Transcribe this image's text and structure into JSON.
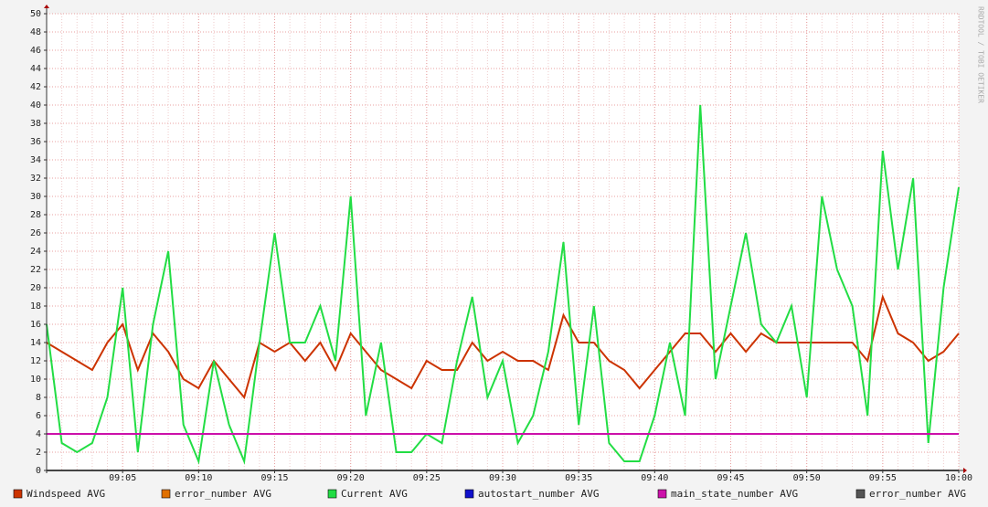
{
  "chart_data": {
    "type": "line",
    "watermark": "RRDTOOL / TOBI OETIKER",
    "x": [
      "09:00",
      "09:01",
      "09:02",
      "09:03",
      "09:04",
      "09:05",
      "09:06",
      "09:07",
      "09:08",
      "09:09",
      "09:10",
      "09:11",
      "09:12",
      "09:13",
      "09:14",
      "09:15",
      "09:16",
      "09:17",
      "09:18",
      "09:19",
      "09:20",
      "09:21",
      "09:22",
      "09:23",
      "09:24",
      "09:25",
      "09:26",
      "09:27",
      "09:28",
      "09:29",
      "09:30",
      "09:31",
      "09:32",
      "09:33",
      "09:34",
      "09:35",
      "09:36",
      "09:37",
      "09:38",
      "09:39",
      "09:40",
      "09:41",
      "09:42",
      "09:43",
      "09:44",
      "09:45",
      "09:46",
      "09:47",
      "09:48",
      "09:49",
      "09:50",
      "09:51",
      "09:52",
      "09:53",
      "09:54",
      "09:55",
      "09:56",
      "09:57",
      "09:58",
      "09:59",
      "10:00"
    ],
    "xticks": [
      "09:05",
      "09:10",
      "09:15",
      "09:20",
      "09:25",
      "09:30",
      "09:35",
      "09:40",
      "09:45",
      "09:50",
      "09:55",
      "10:00"
    ],
    "ylim": [
      0,
      50
    ],
    "yticks": [
      0,
      2,
      4,
      6,
      8,
      10,
      12,
      14,
      16,
      18,
      20,
      22,
      24,
      26,
      28,
      30,
      32,
      34,
      36,
      38,
      40,
      42,
      44,
      46,
      48,
      50
    ],
    "grid": true,
    "series": [
      {
        "name": "Windspeed AVG",
        "color": "#cc3300",
        "values": [
          14,
          13,
          12,
          11,
          14,
          16,
          11,
          15,
          13,
          10,
          9,
          12,
          10,
          8,
          14,
          13,
          14,
          12,
          14,
          11,
          15,
          13,
          11,
          10,
          9,
          12,
          11,
          11,
          14,
          12,
          13,
          12,
          12,
          11,
          17,
          14,
          14,
          12,
          11,
          9,
          11,
          13,
          15,
          15,
          13,
          15,
          13,
          15,
          14,
          14,
          14,
          14,
          14,
          14,
          12,
          19,
          15,
          14,
          12,
          13,
          15
        ]
      },
      {
        "name": "error_number AVG",
        "color": "#e07000",
        "values": [
          0,
          0,
          0,
          0,
          0,
          0,
          0,
          0,
          0,
          0,
          0,
          0,
          0,
          0,
          0,
          0,
          0,
          0,
          0,
          0,
          0,
          0,
          0,
          0,
          0,
          0,
          0,
          0,
          0,
          0,
          0,
          0,
          0,
          0,
          0,
          0,
          0,
          0,
          0,
          0,
          0,
          0,
          0,
          0,
          0,
          0,
          0,
          0,
          0,
          0,
          0,
          0,
          0,
          0,
          0,
          0,
          0,
          0,
          0,
          0,
          0
        ]
      },
      {
        "name": "Current AVG",
        "color": "#22dd44",
        "values": [
          16,
          3,
          2,
          3,
          8,
          20,
          2,
          16,
          24,
          5,
          1,
          12,
          5,
          1,
          14,
          26,
          14,
          14,
          18,
          12,
          30,
          6,
          14,
          2,
          2,
          4,
          3,
          12,
          19,
          8,
          12,
          3,
          6,
          13,
          25,
          5,
          18,
          3,
          1,
          1,
          6,
          14,
          6,
          40,
          10,
          18,
          26,
          16,
          14,
          18,
          8,
          30,
          22,
          18,
          6,
          35,
          22,
          32,
          3,
          20,
          31
        ]
      },
      {
        "name": "autostart_number AVG",
        "color": "#1111cc",
        "values": [
          0,
          0,
          0,
          0,
          0,
          0,
          0,
          0,
          0,
          0,
          0,
          0,
          0,
          0,
          0,
          0,
          0,
          0,
          0,
          0,
          0,
          0,
          0,
          0,
          0,
          0,
          0,
          0,
          0,
          0,
          0,
          0,
          0,
          0,
          0,
          0,
          0,
          0,
          0,
          0,
          0,
          0,
          0,
          0,
          0,
          0,
          0,
          0,
          0,
          0,
          0,
          0,
          0,
          0,
          0,
          0,
          0,
          0,
          0,
          0,
          0
        ]
      },
      {
        "name": "main_state_number AVG",
        "color": "#cc11aa",
        "values": [
          4,
          4,
          4,
          4,
          4,
          4,
          4,
          4,
          4,
          4,
          4,
          4,
          4,
          4,
          4,
          4,
          4,
          4,
          4,
          4,
          4,
          4,
          4,
          4,
          4,
          4,
          4,
          4,
          4,
          4,
          4,
          4,
          4,
          4,
          4,
          4,
          4,
          4,
          4,
          4,
          4,
          4,
          4,
          4,
          4,
          4,
          4,
          4,
          4,
          4,
          4,
          4,
          4,
          4,
          4,
          4,
          4,
          4,
          4,
          4,
          4
        ]
      },
      {
        "name": "error_number AVG",
        "color": "#555555",
        "values": [
          0,
          0,
          0,
          0,
          0,
          0,
          0,
          0,
          0,
          0,
          0,
          0,
          0,
          0,
          0,
          0,
          0,
          0,
          0,
          0,
          0,
          0,
          0,
          0,
          0,
          0,
          0,
          0,
          0,
          0,
          0,
          0,
          0,
          0,
          0,
          0,
          0,
          0,
          0,
          0,
          0,
          0,
          0,
          0,
          0,
          0,
          0,
          0,
          0,
          0,
          0,
          0,
          0,
          0,
          0,
          0,
          0,
          0,
          0,
          0,
          0
        ]
      }
    ]
  }
}
